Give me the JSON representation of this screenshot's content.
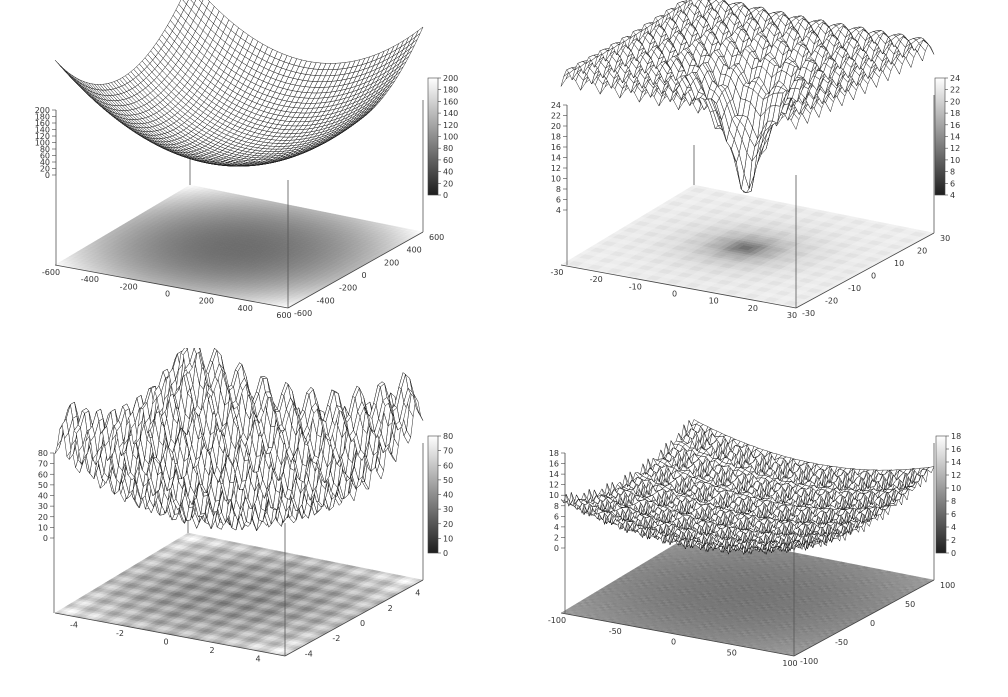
{
  "chart_data": [
    {
      "type": "surface3d",
      "function": "sphere",
      "x_ticks": [
        "-600",
        "-400",
        "-200",
        "0",
        "200",
        "400",
        "600"
      ],
      "y_ticks": [
        "-600",
        "-400",
        "-200",
        "0",
        "200",
        "400",
        "600"
      ],
      "z_ticks": [
        "0",
        "20",
        "40",
        "60",
        "80",
        "100",
        "120",
        "140",
        "160",
        "180",
        "200"
      ],
      "colorbar_ticks": [
        "0",
        "20",
        "40",
        "60",
        "80",
        "100",
        "120",
        "140",
        "160",
        "180",
        "200"
      ],
      "xlim": [
        -600,
        600
      ],
      "ylim": [
        -600,
        600
      ],
      "zlim": [
        0,
        200
      ],
      "colormap": "grayscale",
      "base_projection": true
    },
    {
      "type": "surface3d",
      "function": "ackley",
      "x_ticks": [
        "-30",
        "-20",
        "-10",
        "0",
        "10",
        "20",
        "30"
      ],
      "y_ticks": [
        "-30",
        "-20",
        "-10",
        "0",
        "10",
        "20",
        "30"
      ],
      "z_ticks": [
        "4",
        "6",
        "8",
        "10",
        "12",
        "14",
        "16",
        "18",
        "20",
        "22",
        "24"
      ],
      "colorbar_ticks": [
        "4",
        "6",
        "8",
        "10",
        "12",
        "14",
        "16",
        "18",
        "20",
        "22",
        "24"
      ],
      "xlim": [
        -30,
        30
      ],
      "ylim": [
        -30,
        30
      ],
      "zlim": [
        4,
        24
      ],
      "colormap": "grayscale",
      "base_projection": true
    },
    {
      "type": "surface3d",
      "function": "rastrigin",
      "x_ticks": [
        "-4",
        "-2",
        "0",
        "2",
        "4"
      ],
      "y_ticks": [
        "-4",
        "-2",
        "0",
        "2",
        "4"
      ],
      "z_ticks": [
        "0",
        "10",
        "20",
        "30",
        "40",
        "50",
        "60",
        "70",
        "80"
      ],
      "colorbar_ticks": [
        "0",
        "10",
        "20",
        "30",
        "40",
        "50",
        "60",
        "70",
        "80"
      ],
      "xlim": [
        -5,
        5
      ],
      "ylim": [
        -5,
        5
      ],
      "zlim": [
        0,
        80
      ],
      "colormap": "grayscale",
      "base_projection": true
    },
    {
      "type": "surface3d",
      "function": "griewank",
      "x_ticks": [
        "-100",
        "-50",
        "0",
        "50",
        "100"
      ],
      "y_ticks": [
        "-100",
        "-50",
        "0",
        "50",
        "100"
      ],
      "z_ticks": [
        "0",
        "2",
        "4",
        "6",
        "8",
        "10",
        "12",
        "14",
        "16",
        "18"
      ],
      "colorbar_ticks": [
        "0",
        "2",
        "4",
        "6",
        "8",
        "10",
        "12",
        "14",
        "16",
        "18"
      ],
      "xlim": [
        -100,
        100
      ],
      "ylim": [
        -100,
        100
      ],
      "zlim": [
        0,
        18
      ],
      "colormap": "grayscale",
      "base_projection": true
    }
  ]
}
